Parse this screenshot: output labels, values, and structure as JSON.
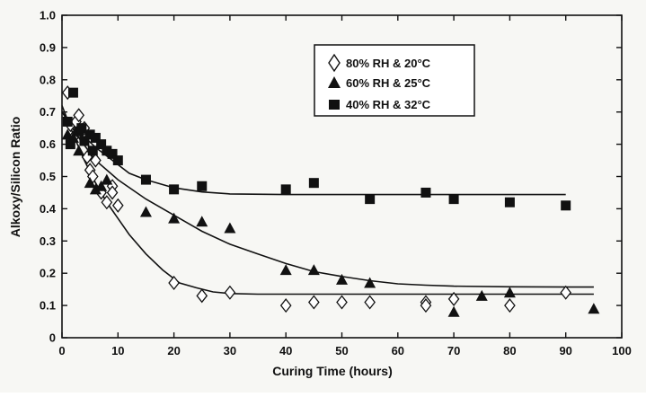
{
  "chart_data": {
    "type": "scatter",
    "title": "",
    "xlabel": "Curing Time (hours)",
    "ylabel": "Alkoxy/Silicon Ratio",
    "xlim": [
      0,
      100
    ],
    "ylim": [
      0,
      1.0
    ],
    "xticks": [
      "0",
      "10",
      "20",
      "30",
      "40",
      "50",
      "60",
      "70",
      "80",
      "90",
      "100"
    ],
    "yticks": [
      "0",
      "0.1",
      "0.2",
      "0.3",
      "0.4",
      "0.5",
      "0.6",
      "0.7",
      "0.8",
      "0.9",
      "1.0"
    ],
    "grid": false,
    "legend_position": "top-center",
    "series": [
      {
        "name": "80% RH & 20°C",
        "marker": "diamond-open",
        "points": [
          [
            1,
            0.76
          ],
          [
            1.5,
            0.66
          ],
          [
            2,
            0.62
          ],
          [
            2.5,
            0.67
          ],
          [
            3,
            0.69
          ],
          [
            3.5,
            0.63
          ],
          [
            4,
            0.65
          ],
          [
            4.5,
            0.56
          ],
          [
            5,
            0.52
          ],
          [
            5.5,
            0.5
          ],
          [
            6,
            0.55
          ],
          [
            7,
            0.45
          ],
          [
            8,
            0.42
          ],
          [
            9,
            0.47
          ],
          [
            9,
            0.45
          ],
          [
            10,
            0.41
          ],
          [
            20,
            0.17
          ],
          [
            25,
            0.13
          ],
          [
            30,
            0.14
          ],
          [
            40,
            0.1
          ],
          [
            45,
            0.11
          ],
          [
            50,
            0.11
          ],
          [
            55,
            0.11
          ],
          [
            65,
            0.11
          ],
          [
            65,
            0.1
          ],
          [
            70,
            0.12
          ],
          [
            80,
            0.1
          ],
          [
            90,
            0.14
          ]
        ],
        "curve": [
          [
            0,
            0.72
          ],
          [
            2,
            0.63
          ],
          [
            4,
            0.55
          ],
          [
            6,
            0.48
          ],
          [
            8,
            0.42
          ],
          [
            10,
            0.37
          ],
          [
            12,
            0.32
          ],
          [
            15,
            0.26
          ],
          [
            18,
            0.21
          ],
          [
            21,
            0.17
          ],
          [
            24,
            0.155
          ],
          [
            27,
            0.142
          ],
          [
            30,
            0.137
          ],
          [
            35,
            0.135
          ],
          [
            40,
            0.135
          ],
          [
            60,
            0.135
          ],
          [
            95,
            0.135
          ]
        ]
      },
      {
        "name": "60% RH & 25°C",
        "marker": "triangle-filled",
        "points": [
          [
            1,
            0.63
          ],
          [
            2,
            0.62
          ],
          [
            3,
            0.58
          ],
          [
            5,
            0.48
          ],
          [
            6,
            0.46
          ],
          [
            7,
            0.47
          ],
          [
            8,
            0.49
          ],
          [
            15,
            0.39
          ],
          [
            20,
            0.37
          ],
          [
            25,
            0.36
          ],
          [
            30,
            0.34
          ],
          [
            40,
            0.21
          ],
          [
            45,
            0.21
          ],
          [
            50,
            0.18
          ],
          [
            55,
            0.17
          ],
          [
            70,
            0.08
          ],
          [
            75,
            0.13
          ],
          [
            80,
            0.14
          ],
          [
            95,
            0.09
          ]
        ],
        "curve": [
          [
            0,
            0.7
          ],
          [
            3,
            0.62
          ],
          [
            6,
            0.55
          ],
          [
            10,
            0.49
          ],
          [
            15,
            0.43
          ],
          [
            20,
            0.38
          ],
          [
            25,
            0.33
          ],
          [
            30,
            0.29
          ],
          [
            35,
            0.26
          ],
          [
            40,
            0.23
          ],
          [
            45,
            0.205
          ],
          [
            50,
            0.19
          ],
          [
            55,
            0.177
          ],
          [
            60,
            0.167
          ],
          [
            65,
            0.163
          ],
          [
            70,
            0.16
          ],
          [
            80,
            0.158
          ],
          [
            95,
            0.157
          ]
        ]
      },
      {
        "name": "40% RH & 32°C",
        "marker": "square-filled",
        "points": [
          [
            1,
            0.67
          ],
          [
            1.5,
            0.6
          ],
          [
            2,
            0.76
          ],
          [
            3,
            0.64
          ],
          [
            3.5,
            0.65
          ],
          [
            4,
            0.61
          ],
          [
            5,
            0.63
          ],
          [
            5.5,
            0.58
          ],
          [
            6,
            0.62
          ],
          [
            7,
            0.6
          ],
          [
            8,
            0.58
          ],
          [
            9,
            0.57
          ],
          [
            10,
            0.55
          ],
          [
            15,
            0.49
          ],
          [
            20,
            0.46
          ],
          [
            25,
            0.47
          ],
          [
            40,
            0.46
          ],
          [
            45,
            0.48
          ],
          [
            55,
            0.43
          ],
          [
            65,
            0.45
          ],
          [
            70,
            0.43
          ],
          [
            80,
            0.42
          ],
          [
            90,
            0.41
          ]
        ],
        "curve": [
          [
            0,
            0.7
          ],
          [
            3,
            0.64
          ],
          [
            6,
            0.59
          ],
          [
            9,
            0.55
          ],
          [
            12,
            0.51
          ],
          [
            15,
            0.49
          ],
          [
            20,
            0.465
          ],
          [
            25,
            0.452
          ],
          [
            30,
            0.446
          ],
          [
            40,
            0.444
          ],
          [
            60,
            0.444
          ],
          [
            90,
            0.444
          ]
        ]
      }
    ]
  }
}
